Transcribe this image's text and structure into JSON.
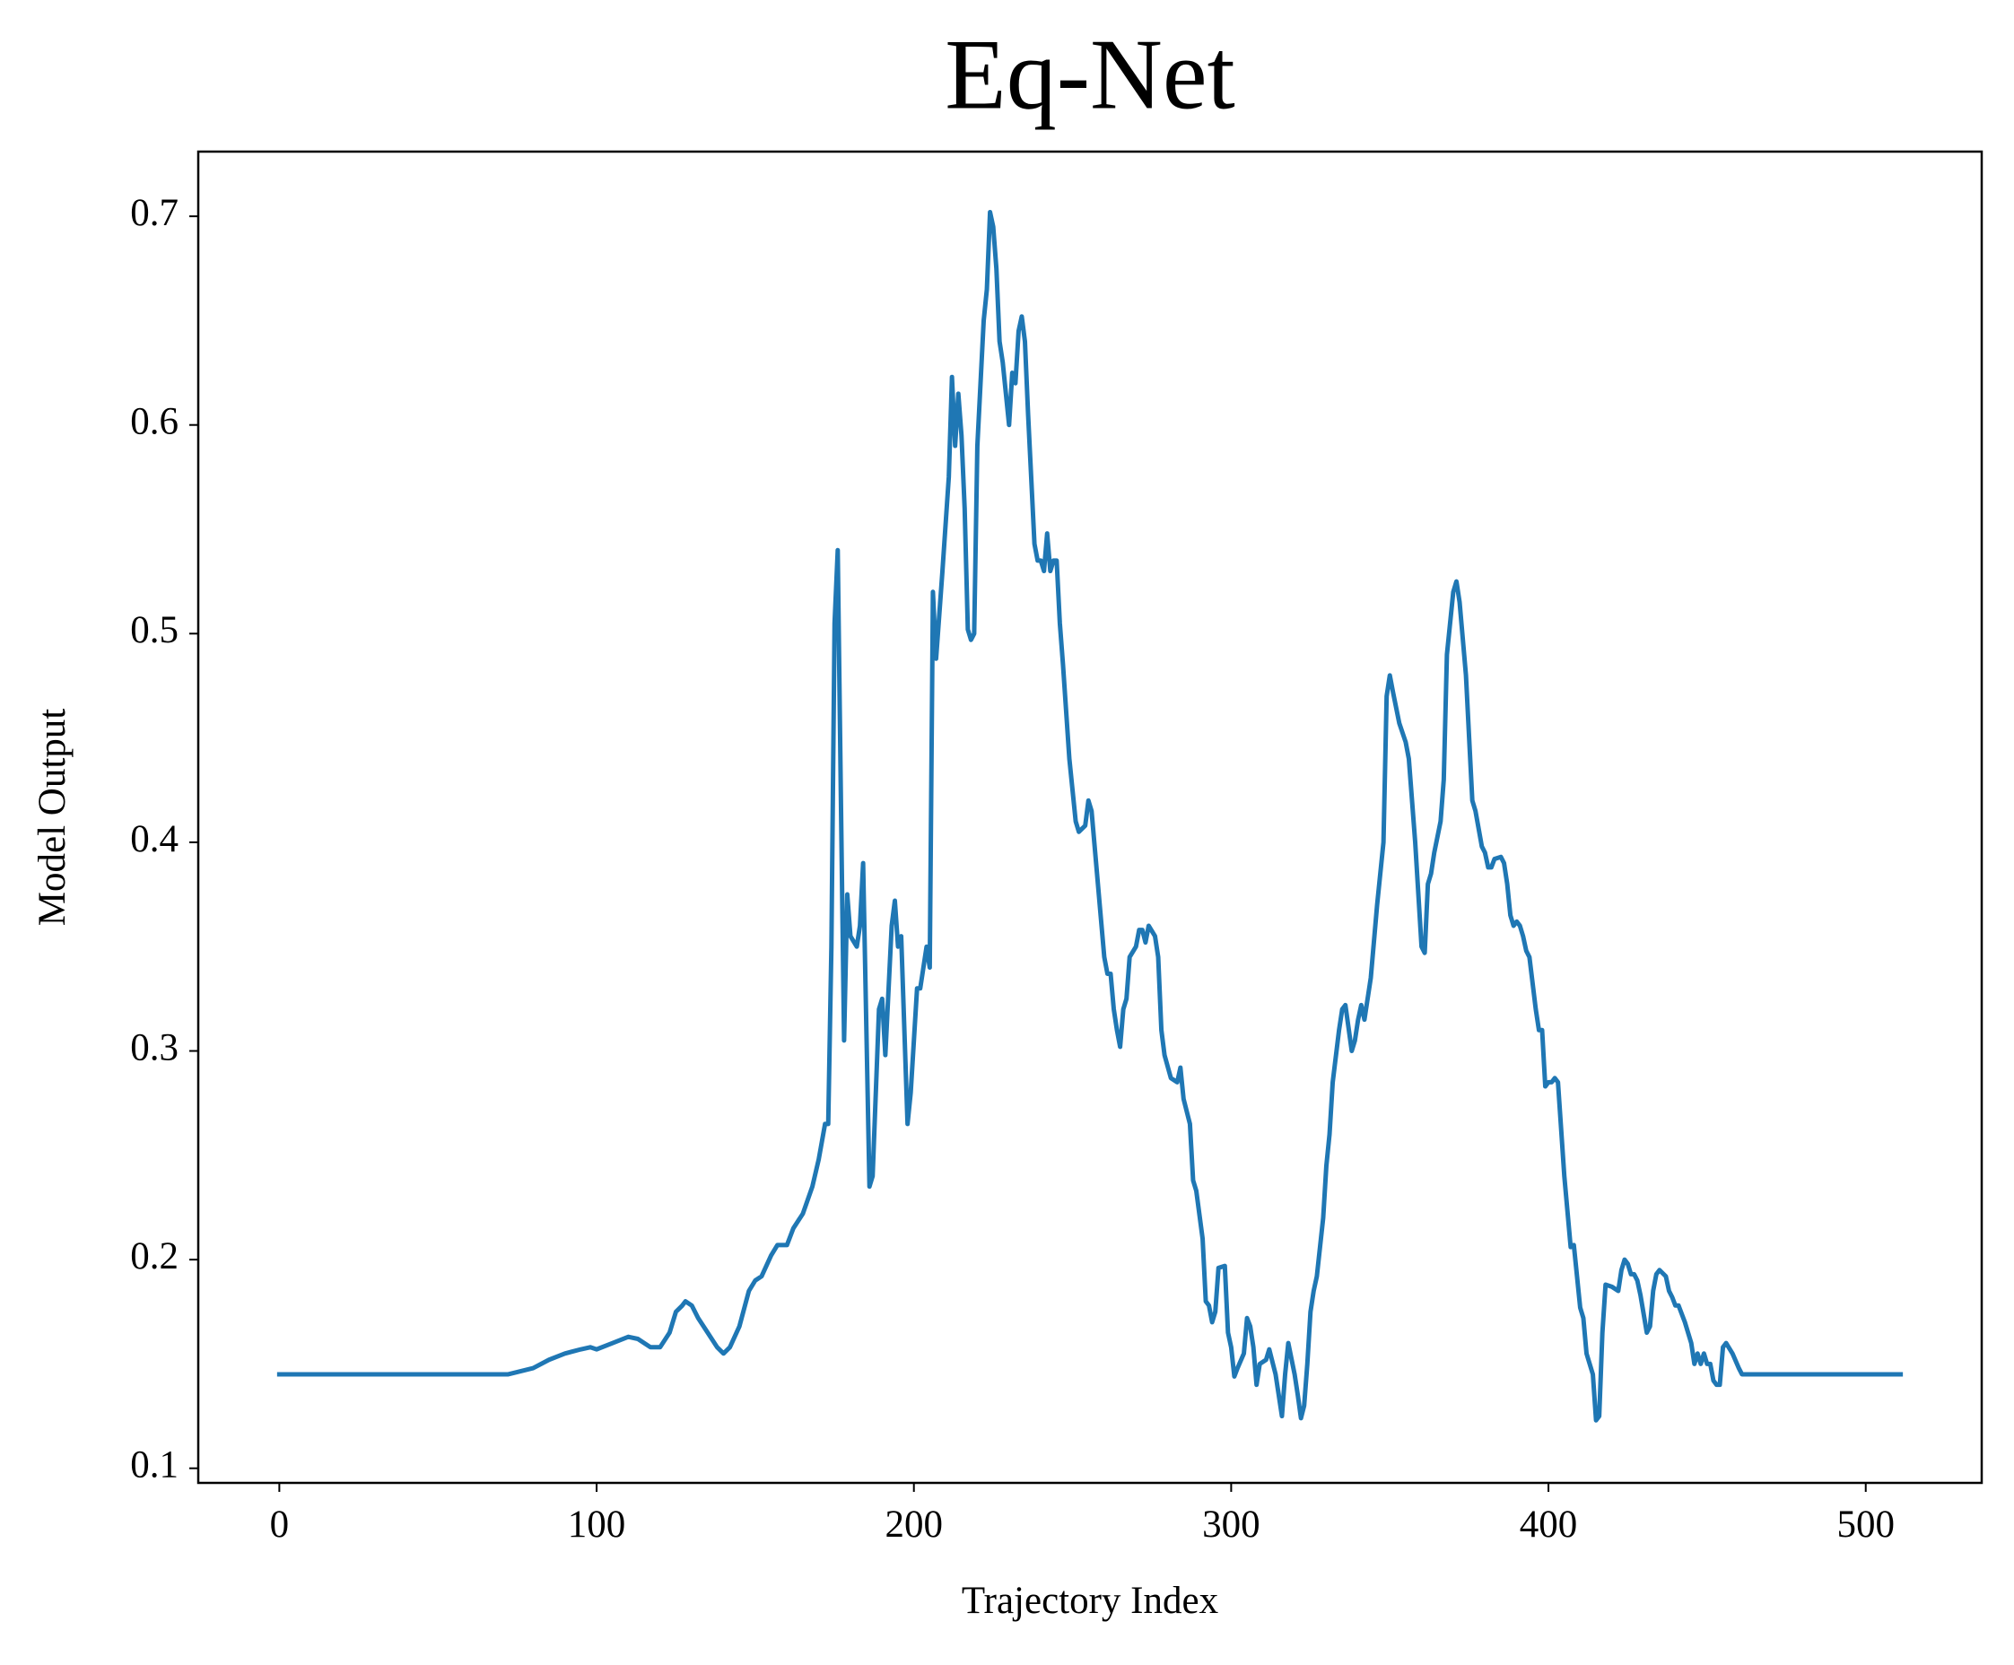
{
  "chart_data": {
    "type": "line",
    "title": "Eq-Net",
    "x_label": "Trajectory Index",
    "y_label": "Model Output",
    "color": "#1f77b4",
    "grid": false,
    "xlim": [
      -25.55,
      536.55
    ],
    "ylim": [
      0.093,
      0.731
    ],
    "xticks": [
      0,
      100,
      200,
      300,
      400,
      500
    ],
    "yticks": [
      0.1,
      0.2,
      0.3,
      0.4,
      0.5,
      0.6,
      0.7
    ],
    "x": [
      0,
      72,
      80,
      85,
      90,
      95,
      98,
      100,
      105,
      110,
      113,
      117,
      120,
      123,
      125,
      127,
      128,
      130,
      132,
      135,
      138,
      140,
      142,
      145,
      148,
      150,
      152,
      155,
      157,
      160,
      162,
      165,
      168,
      170,
      172,
      173,
      174,
      175,
      176,
      177,
      178,
      179,
      180,
      182,
      183,
      184,
      186,
      187,
      189,
      190,
      191,
      193,
      194,
      195,
      196,
      198,
      199,
      201,
      202,
      204,
      205,
      206,
      207,
      209,
      211,
      212,
      213,
      214,
      215,
      216,
      217,
      218,
      219,
      220,
      222,
      223,
      224,
      225,
      226,
      227,
      228,
      230,
      231,
      232,
      233,
      234,
      235,
      236,
      238,
      239,
      240,
      241,
      242,
      243,
      244,
      245,
      246,
      247,
      249,
      251,
      252,
      254,
      255,
      256,
      258,
      260,
      261,
      262,
      263,
      264,
      265,
      266,
      267,
      268,
      270,
      271,
      272,
      273,
      274,
      276,
      277,
      278,
      279,
      281,
      283,
      284,
      285,
      287,
      288,
      289,
      291,
      292,
      293,
      294,
      295,
      296,
      298,
      299,
      300,
      301,
      302,
      304,
      305,
      306,
      307,
      308,
      309,
      311,
      312,
      314,
      316,
      317,
      318,
      320,
      321,
      322,
      323,
      324,
      325,
      326,
      327,
      329,
      330,
      331,
      332,
      334,
      335,
      336,
      338,
      339,
      340,
      341,
      342,
      344,
      346,
      348,
      349,
      350,
      351,
      353,
      355,
      356,
      358,
      360,
      361,
      362,
      363,
      364,
      366,
      367,
      368,
      370,
      371,
      372,
      374,
      375,
      376,
      377,
      379,
      380,
      381,
      382,
      383,
      385,
      386,
      387,
      388,
      389,
      390,
      391,
      392,
      393,
      394,
      396,
      397,
      398,
      399,
      400,
      401,
      402,
      403,
      405,
      407,
      408,
      410,
      411,
      412,
      414,
      415,
      416,
      417,
      418,
      420,
      422,
      423,
      424,
      425,
      426,
      427,
      428,
      429,
      431,
      432,
      433,
      434,
      435,
      437,
      438,
      439,
      440,
      441,
      443,
      444,
      445,
      446,
      447,
      448,
      449,
      450,
      451,
      452,
      453,
      454,
      455,
      456,
      458,
      460,
      461,
      511
    ],
    "values": [
      0.145,
      0.145,
      0.148,
      0.152,
      0.155,
      0.157,
      0.158,
      0.157,
      0.16,
      0.163,
      0.162,
      0.158,
      0.158,
      0.165,
      0.175,
      0.178,
      0.18,
      0.178,
      0.172,
      0.165,
      0.158,
      0.155,
      0.158,
      0.168,
      0.185,
      0.19,
      0.192,
      0.202,
      0.207,
      0.207,
      0.215,
      0.222,
      0.235,
      0.248,
      0.265,
      0.265,
      0.35,
      0.505,
      0.54,
      0.42,
      0.305,
      0.375,
      0.355,
      0.35,
      0.36,
      0.39,
      0.235,
      0.24,
      0.32,
      0.325,
      0.298,
      0.36,
      0.372,
      0.35,
      0.355,
      0.265,
      0.28,
      0.33,
      0.33,
      0.35,
      0.34,
      0.52,
      0.488,
      0.53,
      0.575,
      0.623,
      0.59,
      0.615,
      0.595,
      0.56,
      0.502,
      0.497,
      0.5,
      0.59,
      0.65,
      0.665,
      0.702,
      0.695,
      0.675,
      0.64,
      0.63,
      0.6,
      0.625,
      0.62,
      0.645,
      0.652,
      0.64,
      0.605,
      0.543,
      0.535,
      0.535,
      0.53,
      0.548,
      0.53,
      0.535,
      0.535,
      0.505,
      0.485,
      0.44,
      0.41,
      0.405,
      0.408,
      0.42,
      0.415,
      0.38,
      0.345,
      0.337,
      0.337,
      0.32,
      0.31,
      0.302,
      0.32,
      0.325,
      0.345,
      0.35,
      0.358,
      0.358,
      0.352,
      0.36,
      0.355,
      0.345,
      0.31,
      0.298,
      0.287,
      0.285,
      0.292,
      0.277,
      0.265,
      0.238,
      0.233,
      0.21,
      0.18,
      0.178,
      0.17,
      0.175,
      0.196,
      0.197,
      0.165,
      0.158,
      0.144,
      0.148,
      0.155,
      0.172,
      0.168,
      0.158,
      0.14,
      0.15,
      0.152,
      0.157,
      0.145,
      0.125,
      0.145,
      0.16,
      0.145,
      0.135,
      0.124,
      0.13,
      0.15,
      0.175,
      0.185,
      0.192,
      0.22,
      0.245,
      0.26,
      0.285,
      0.31,
      0.32,
      0.322,
      0.3,
      0.305,
      0.315,
      0.322,
      0.315,
      0.335,
      0.37,
      0.4,
      0.47,
      0.48,
      0.472,
      0.457,
      0.448,
      0.44,
      0.4,
      0.35,
      0.347,
      0.38,
      0.385,
      0.395,
      0.41,
      0.43,
      0.49,
      0.52,
      0.525,
      0.515,
      0.48,
      0.45,
      0.42,
      0.415,
      0.398,
      0.395,
      0.388,
      0.388,
      0.392,
      0.393,
      0.39,
      0.38,
      0.365,
      0.36,
      0.362,
      0.36,
      0.355,
      0.348,
      0.345,
      0.32,
      0.31,
      0.31,
      0.283,
      0.285,
      0.285,
      0.287,
      0.285,
      0.24,
      0.206,
      0.207,
      0.177,
      0.172,
      0.155,
      0.145,
      0.123,
      0.125,
      0.165,
      0.188,
      0.187,
      0.185,
      0.195,
      0.2,
      0.198,
      0.193,
      0.193,
      0.19,
      0.183,
      0.165,
      0.168,
      0.185,
      0.193,
      0.195,
      0.192,
      0.185,
      0.182,
      0.178,
      0.178,
      0.17,
      0.165,
      0.16,
      0.15,
      0.155,
      0.15,
      0.155,
      0.15,
      0.15,
      0.142,
      0.14,
      0.14,
      0.158,
      0.16,
      0.155,
      0.148,
      0.145,
      0.145
    ]
  }
}
